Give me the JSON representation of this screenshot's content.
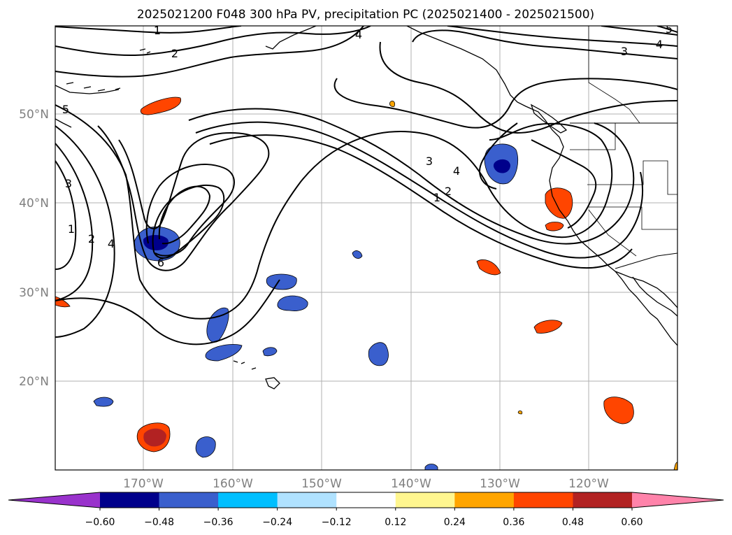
{
  "title": "2025021200 F048 300 hPa PV, precipitation PC (2025021400 - 2025021500)",
  "map": {
    "lat_labels": [
      "50°N",
      "40°N",
      "30°N",
      "20°N"
    ],
    "lon_labels": [
      "170°W",
      "160°W",
      "150°W",
      "140°W",
      "130°W",
      "120°W"
    ],
    "grid": true,
    "coastline_color": "#000000"
  },
  "pv_contours": {
    "color": "#000000",
    "labels": [
      "1",
      "2",
      "3",
      "4",
      "5",
      "6"
    ]
  },
  "colorbar": {
    "orientation": "horizontal",
    "extend": "both",
    "tick_labels": [
      "−0.60",
      "−0.48",
      "−0.36",
      "−0.24",
      "−0.12",
      "0.12",
      "0.24",
      "0.36",
      "0.48",
      "0.60"
    ],
    "colors": [
      "#9932cc",
      "#00008b",
      "#3a5fcd",
      "#00bfff",
      "#b0e2ff",
      "#ffffff",
      "#fff68f",
      "#ffa500",
      "#ff4500",
      "#b22222",
      "#ff83aa"
    ]
  }
}
